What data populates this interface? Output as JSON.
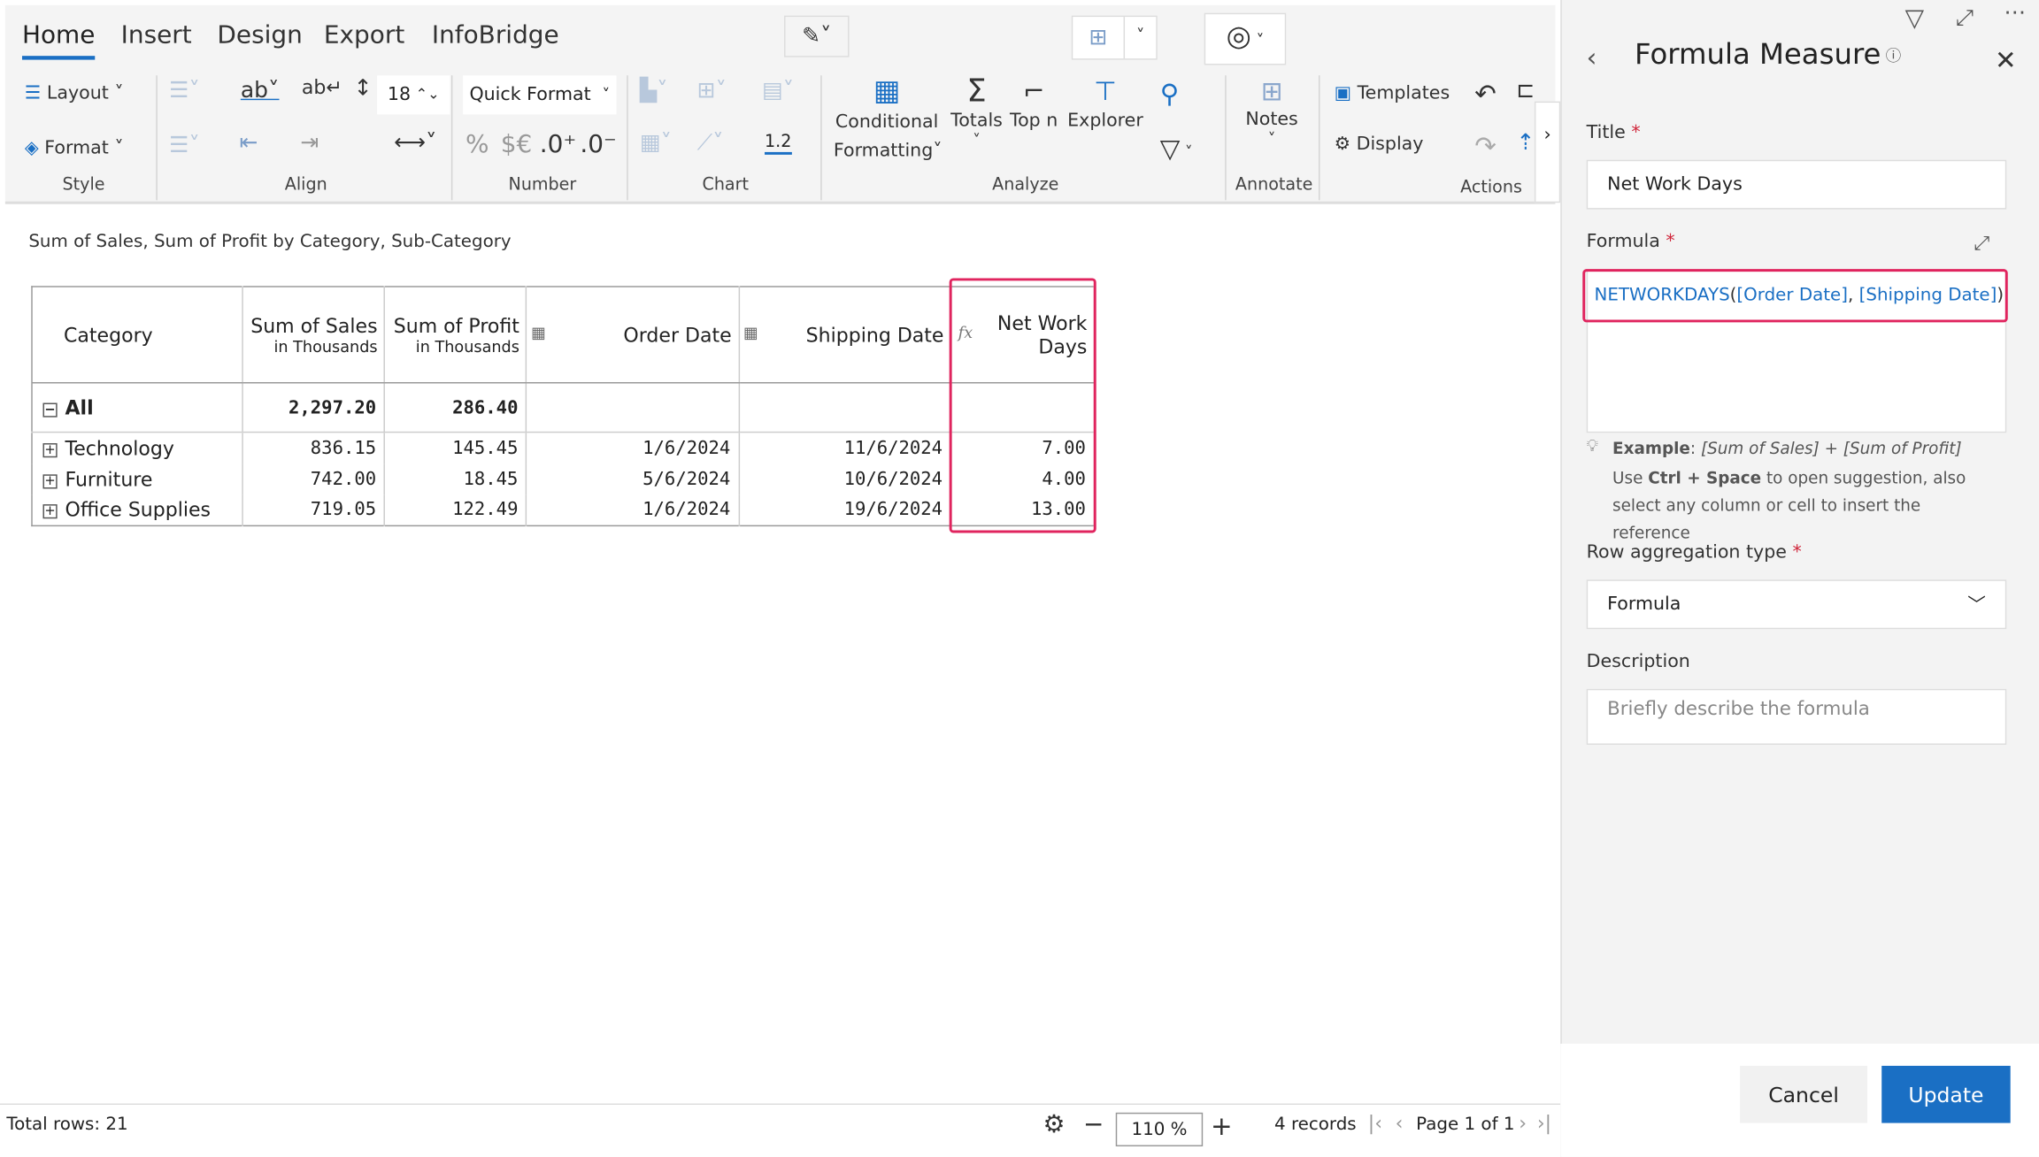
{
  "ribbon": {
    "tabs": [
      "Home",
      "Insert",
      "Design",
      "Export",
      "InfoBridge"
    ],
    "active_tab": "Home",
    "style": {
      "layout": "Layout",
      "format": "Format",
      "group": "Style"
    },
    "align": {
      "group": "Align",
      "font_size": "18"
    },
    "number": {
      "quick_format": "Quick Format",
      "percent": "%",
      "currency": "$€",
      "inc_decimal": ".0⁺",
      "dec_decimal": ".0⁻",
      "group": "Number"
    },
    "chart": {
      "decimal_label": "1.2",
      "group": "Chart"
    },
    "analyze": {
      "conditional": "Conditional",
      "formatting": "Formatting",
      "totals": "Totals",
      "topn": "Top n",
      "explorer": "Explorer",
      "group": "Analyze"
    },
    "annotate": {
      "notes": "Notes",
      "group": "Annotate"
    },
    "actions": {
      "templates": "Templates",
      "display": "Display",
      "group": "Actions"
    }
  },
  "report": {
    "subtitle": "Sum of Sales, Sum of Profit by Category, Sub-Category",
    "columns": [
      {
        "label": "Category",
        "sub": ""
      },
      {
        "label": "Sum of Sales",
        "sub": "in Thousands"
      },
      {
        "label": "Sum of Profit",
        "sub": "in Thousands"
      },
      {
        "label": "Order Date",
        "sub": ""
      },
      {
        "label": "Shipping Date",
        "sub": ""
      },
      {
        "label": "Net Work Days",
        "sub": ""
      }
    ],
    "total_row": {
      "label": "All",
      "sales": "2,297.20",
      "profit": "286.40"
    },
    "rows": [
      {
        "category": "Technology",
        "sales": "836.15",
        "profit": "145.45",
        "order_date": "1/6/2024",
        "shipping_date": "11/6/2024",
        "net_work_days": "7.00"
      },
      {
        "category": "Furniture",
        "sales": "742.00",
        "profit": "18.45",
        "order_date": "5/6/2024",
        "shipping_date": "10/6/2024",
        "net_work_days": "4.00"
      },
      {
        "category": "Office Supplies",
        "sales": "719.05",
        "profit": "122.49",
        "order_date": "1/6/2024",
        "shipping_date": "19/6/2024",
        "net_work_days": "13.00"
      }
    ]
  },
  "status": {
    "total_rows": "Total rows: 21",
    "zoom": "110 %",
    "records": "4 records",
    "page": "Page 1 of 1"
  },
  "panel": {
    "title": "Formula Measure",
    "title_label": "Title",
    "title_value": "Net Work Days",
    "formula_label": "Formula",
    "formula": {
      "fn": "NETWORKDAYS",
      "open": "(",
      "arg1": "[Order Date]",
      "comma": ",",
      "arg2": "[Shipping Date]",
      "close": ")"
    },
    "example_label": "Example",
    "example_colon": ":",
    "example_value": "[Sum of Sales] + [Sum of Profit]",
    "hint_use": "Use ",
    "hint_keys": "Ctrl + Space",
    "hint_rest": " to open suggestion, also select any column or cell to insert the reference",
    "row_agg_label": "Row aggregation type",
    "row_agg_value": "Formula",
    "description_label": "Description",
    "description_placeholder": "Briefly describe the formula",
    "cancel": "Cancel",
    "update": "Update"
  },
  "colors": {
    "accent": "#1a6fc4",
    "highlight": "#e0245e",
    "formula_blue": "#1a6fc4"
  }
}
